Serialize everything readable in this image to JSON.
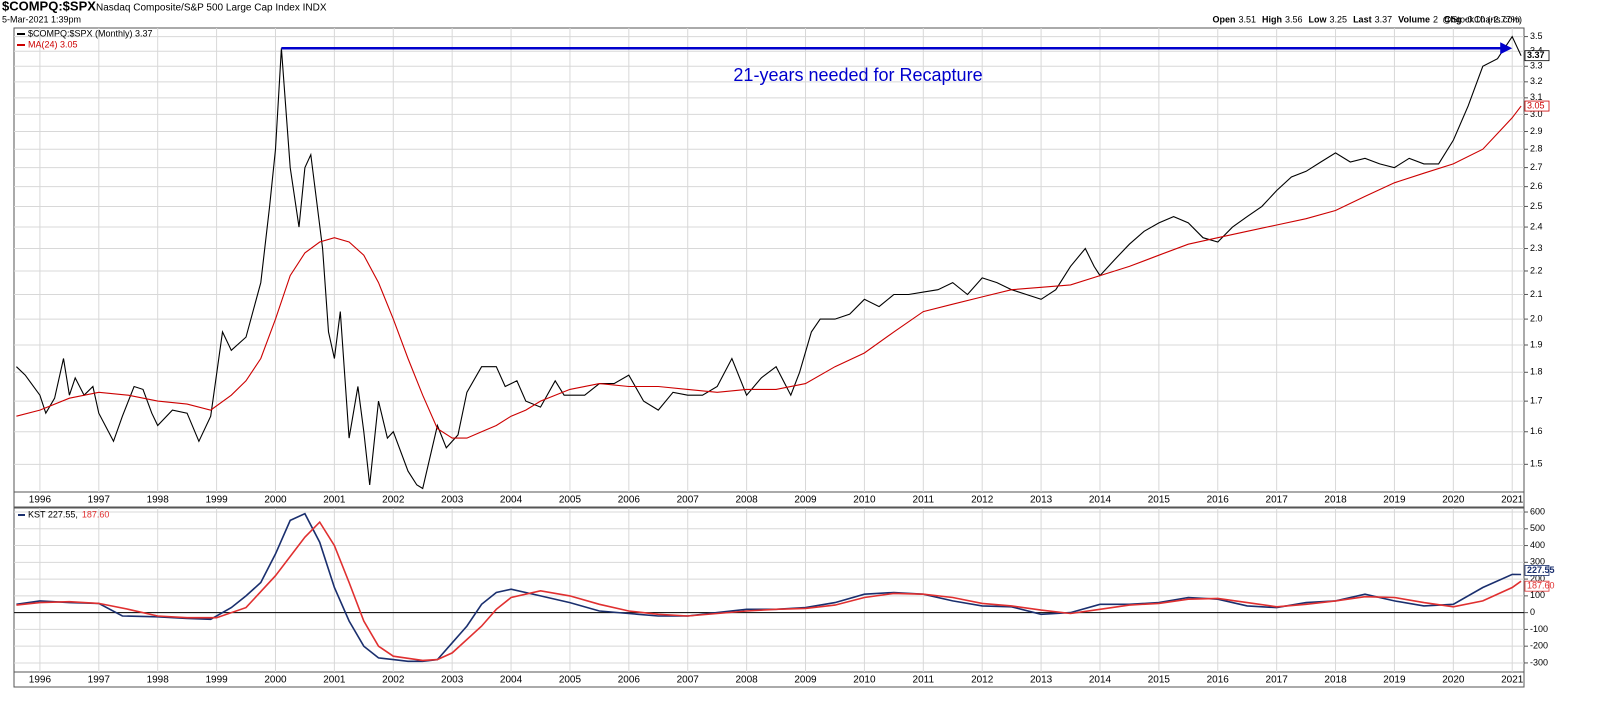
{
  "header": {
    "symbol": "$COMPQ:$SPX",
    "name": "Nasdaq Composite/S&P 500 Large Cap Index  INDX",
    "date": "5-Mar-2021 1:39pm",
    "source": "@StockCharts.com",
    "quote": [
      {
        "label": "Open",
        "value": "3.51"
      },
      {
        "label": "High",
        "value": "3.56"
      },
      {
        "label": "Low",
        "value": "3.25"
      },
      {
        "label": "Last",
        "value": "3.37"
      },
      {
        "label": "Volume",
        "value": "2"
      },
      {
        "label": "Chg",
        "value": "-0.10 (-2.77%)"
      }
    ]
  },
  "chart_data": [
    {
      "type": "line",
      "log": true,
      "grid": true,
      "annotation": "21-years needed for  Recapture",
      "arrow": {
        "x": [
          2000.1,
          2021.0
        ],
        "y": 3.42,
        "color": "#0000cc"
      },
      "xlim": [
        1995.56,
        2021.2
      ],
      "xticks": [
        1996,
        1997,
        1998,
        1999,
        2000,
        2001,
        2002,
        2003,
        2004,
        2005,
        2006,
        2007,
        2008,
        2009,
        2010,
        2011,
        2012,
        2013,
        2014,
        2015,
        2016,
        2017,
        2018,
        2019,
        2020,
        2021
      ],
      "ylim": [
        1.42,
        3.56
      ],
      "yticks": [
        1.5,
        1.6,
        1.7,
        1.8,
        1.9,
        {
          "value": 2,
          "label": "2.0"
        },
        2.1,
        2.2,
        2.3,
        2.4,
        2.5,
        2.6,
        2.7,
        2.8,
        2.9,
        {
          "value": 3,
          "label": "3.0"
        },
        3.1,
        3.2,
        3.3,
        3.4,
        3.5
      ],
      "series": [
        {
          "name": "$COMPQ:$SPX (Monthly) 3.37",
          "end_label": "3.37",
          "color": "#000000",
          "x": [
            1995.6,
            1995.75,
            1996.0,
            1996.1,
            1996.25,
            1996.4,
            1996.5,
            1996.6,
            1996.75,
            1996.9,
            1997.0,
            1997.25,
            1997.4,
            1997.6,
            1997.75,
            1997.9,
            1998.0,
            1998.25,
            1998.5,
            1998.7,
            1998.9,
            1999.1,
            1999.25,
            1999.5,
            1999.75,
            1999.9,
            2000.0,
            2000.1,
            2000.25,
            2000.4,
            2000.5,
            2000.6,
            2000.8,
            2000.9,
            2001.0,
            2001.1,
            2001.25,
            2001.4,
            2001.5,
            2001.6,
            2001.75,
            2001.9,
            2002.0,
            2002.25,
            2002.4,
            2002.5,
            2002.75,
            2002.9,
            2003.1,
            2003.25,
            2003.5,
            2003.75,
            2003.9,
            2004.1,
            2004.25,
            2004.5,
            2004.75,
            2004.9,
            2005.25,
            2005.5,
            2005.75,
            2006.0,
            2006.25,
            2006.5,
            2006.75,
            2007.0,
            2007.25,
            2007.5,
            2007.75,
            2008.0,
            2008.25,
            2008.5,
            2008.75,
            2008.9,
            2009.1,
            2009.25,
            2009.5,
            2009.75,
            2010.0,
            2010.25,
            2010.5,
            2010.75,
            2011.0,
            2011.25,
            2011.5,
            2011.75,
            2012.0,
            2012.25,
            2012.5,
            2012.75,
            2013.0,
            2013.25,
            2013.5,
            2013.75,
            2013.9,
            2014.0,
            2014.25,
            2014.5,
            2014.75,
            2015.0,
            2015.25,
            2015.5,
            2015.75,
            2016.0,
            2016.25,
            2016.5,
            2016.75,
            2017.0,
            2017.25,
            2017.5,
            2017.75,
            2018.0,
            2018.25,
            2018.5,
            2018.75,
            2019.0,
            2019.25,
            2019.5,
            2019.75,
            2020.0,
            2020.25,
            2020.5,
            2020.75,
            2021.0,
            2021.15
          ],
          "values": [
            1.82,
            1.79,
            1.72,
            1.66,
            1.71,
            1.85,
            1.72,
            1.78,
            1.72,
            1.75,
            1.66,
            1.57,
            1.65,
            1.75,
            1.74,
            1.66,
            1.62,
            1.67,
            1.66,
            1.57,
            1.65,
            1.95,
            1.88,
            1.93,
            2.15,
            2.5,
            2.8,
            3.42,
            2.7,
            2.4,
            2.7,
            2.77,
            2.3,
            1.95,
            1.85,
            2.03,
            1.58,
            1.75,
            1.6,
            1.44,
            1.7,
            1.58,
            1.6,
            1.48,
            1.44,
            1.43,
            1.62,
            1.55,
            1.59,
            1.73,
            1.82,
            1.82,
            1.75,
            1.77,
            1.7,
            1.68,
            1.77,
            1.72,
            1.72,
            1.76,
            1.76,
            1.79,
            1.7,
            1.67,
            1.73,
            1.72,
            1.72,
            1.75,
            1.85,
            1.72,
            1.78,
            1.82,
            1.72,
            1.8,
            1.95,
            2.0,
            2.0,
            2.02,
            2.08,
            2.05,
            2.1,
            2.1,
            2.11,
            2.12,
            2.15,
            2.1,
            2.17,
            2.15,
            2.12,
            2.1,
            2.08,
            2.12,
            2.22,
            2.3,
            2.22,
            2.18,
            2.25,
            2.32,
            2.38,
            2.42,
            2.45,
            2.42,
            2.35,
            2.33,
            2.4,
            2.45,
            2.5,
            2.58,
            2.65,
            2.68,
            2.73,
            2.78,
            2.73,
            2.75,
            2.72,
            2.7,
            2.75,
            2.72,
            2.72,
            2.85,
            3.05,
            3.3,
            3.35,
            3.5,
            3.37
          ]
        },
        {
          "name": "MA(24) 3.05",
          "end_label": "3.05",
          "color": "#cc0000",
          "x": [
            1995.6,
            1996.0,
            1996.5,
            1997.0,
            1997.5,
            1998.0,
            1998.5,
            1998.9,
            1999.25,
            1999.5,
            1999.75,
            2000.0,
            2000.25,
            2000.5,
            2000.75,
            2001.0,
            2001.25,
            2001.5,
            2001.75,
            2002.0,
            2002.25,
            2002.5,
            2002.75,
            2003.0,
            2003.25,
            2003.5,
            2003.75,
            2004.0,
            2004.25,
            2004.5,
            2004.75,
            2005.0,
            2005.5,
            2006.0,
            2006.5,
            2007.0,
            2007.5,
            2008.0,
            2008.5,
            2009.0,
            2009.5,
            2010.0,
            2010.5,
            2011.0,
            2011.5,
            2012.0,
            2012.5,
            2013.0,
            2013.5,
            2014.0,
            2014.5,
            2015.0,
            2015.5,
            2016.0,
            2016.5,
            2017.0,
            2017.5,
            2018.0,
            2018.5,
            2019.0,
            2019.5,
            2020.0,
            2020.5,
            2021.0,
            2021.15
          ],
          "values": [
            1.65,
            1.67,
            1.71,
            1.73,
            1.72,
            1.7,
            1.69,
            1.67,
            1.72,
            1.77,
            1.85,
            2.0,
            2.18,
            2.28,
            2.33,
            2.35,
            2.33,
            2.27,
            2.15,
            2.0,
            1.85,
            1.72,
            1.61,
            1.58,
            1.58,
            1.6,
            1.62,
            1.65,
            1.67,
            1.7,
            1.72,
            1.74,
            1.76,
            1.75,
            1.75,
            1.74,
            1.73,
            1.74,
            1.74,
            1.76,
            1.82,
            1.87,
            1.95,
            2.03,
            2.06,
            2.09,
            2.12,
            2.13,
            2.14,
            2.18,
            2.22,
            2.27,
            2.32,
            2.35,
            2.38,
            2.41,
            2.44,
            2.48,
            2.55,
            2.62,
            2.67,
            2.72,
            2.8,
            2.98,
            3.05
          ]
        }
      ]
    },
    {
      "type": "line",
      "log": false,
      "grid": true,
      "zero_line": true,
      "xlim": [
        1995.56,
        2021.2
      ],
      "xticks": [
        1996,
        1997,
        1998,
        1999,
        2000,
        2001,
        2002,
        2003,
        2004,
        2005,
        2006,
        2007,
        2008,
        2009,
        2010,
        2011,
        2012,
        2013,
        2014,
        2015,
        2016,
        2017,
        2018,
        2019,
        2020,
        2021
      ],
      "ylim": [
        -354,
        624
      ],
      "yticks": [
        -300,
        -200,
        -100,
        0,
        100,
        200,
        300,
        400,
        500,
        600
      ],
      "series": [
        {
          "name": "KST 227.55,",
          "end_label": "227.55",
          "color": "#1a2f6e",
          "x": [
            1995.6,
            1996.0,
            1996.5,
            1997.0,
            1997.4,
            1998.0,
            1998.5,
            1998.9,
            1999.25,
            1999.5,
            1999.75,
            2000.0,
            2000.25,
            2000.5,
            2000.75,
            2001.0,
            2001.25,
            2001.5,
            2001.75,
            2002.0,
            2002.25,
            2002.5,
            2002.75,
            2003.0,
            2003.25,
            2003.5,
            2003.75,
            2004.0,
            2004.5,
            2005.0,
            2005.5,
            2006.0,
            2006.5,
            2007.0,
            2007.5,
            2008.0,
            2008.5,
            2009.0,
            2009.5,
            2010.0,
            2010.5,
            2011.0,
            2011.5,
            2012.0,
            2012.5,
            2013.0,
            2013.5,
            2014.0,
            2014.5,
            2015.0,
            2015.5,
            2016.0,
            2016.5,
            2017.0,
            2017.5,
            2018.0,
            2018.5,
            2019.0,
            2019.5,
            2020.0,
            2020.5,
            2021.0,
            2021.15
          ],
          "values": [
            50,
            70,
            60,
            55,
            -20,
            -25,
            -35,
            -40,
            30,
            100,
            180,
            350,
            550,
            590,
            420,
            150,
            -50,
            -200,
            -270,
            -280,
            -290,
            -290,
            -280,
            -180,
            -80,
            50,
            120,
            140,
            100,
            60,
            10,
            -5,
            -20,
            -20,
            0,
            20,
            20,
            30,
            60,
            110,
            120,
            110,
            70,
            40,
            35,
            -10,
            0,
            50,
            50,
            60,
            90,
            80,
            40,
            30,
            60,
            70,
            110,
            70,
            40,
            50,
            150,
            228,
            227.55
          ]
        },
        {
          "name": "187.60",
          "end_label": "187.60",
          "color": "#e03030",
          "x": [
            1995.6,
            1996.0,
            1996.5,
            1997.0,
            1997.5,
            1998.0,
            1998.5,
            1999.0,
            1999.5,
            2000.0,
            2000.5,
            2000.75,
            2001.0,
            2001.25,
            2001.5,
            2001.75,
            2002.0,
            2002.5,
            2002.75,
            2003.0,
            2003.5,
            2003.75,
            2004.0,
            2004.5,
            2005.0,
            2005.5,
            2006.0,
            2006.5,
            2007.0,
            2007.5,
            2008.0,
            2008.5,
            2009.0,
            2009.5,
            2010.0,
            2010.5,
            2011.0,
            2011.5,
            2012.0,
            2012.5,
            2013.0,
            2013.5,
            2014.0,
            2014.5,
            2015.0,
            2015.5,
            2016.0,
            2016.5,
            2017.0,
            2017.5,
            2018.0,
            2018.5,
            2019.0,
            2019.5,
            2020.0,
            2020.5,
            2021.0,
            2021.15
          ],
          "values": [
            45,
            60,
            65,
            55,
            20,
            -20,
            -30,
            -30,
            30,
            220,
            450,
            540,
            400,
            180,
            -50,
            -200,
            -260,
            -285,
            -280,
            -240,
            -80,
            20,
            90,
            130,
            100,
            50,
            10,
            -10,
            -20,
            -5,
            10,
            20,
            25,
            45,
            90,
            115,
            110,
            90,
            55,
            40,
            15,
            -5,
            20,
            45,
            55,
            80,
            85,
            60,
            35,
            50,
            70,
            95,
            90,
            60,
            35,
            70,
            150,
            187.6
          ]
        }
      ]
    }
  ]
}
